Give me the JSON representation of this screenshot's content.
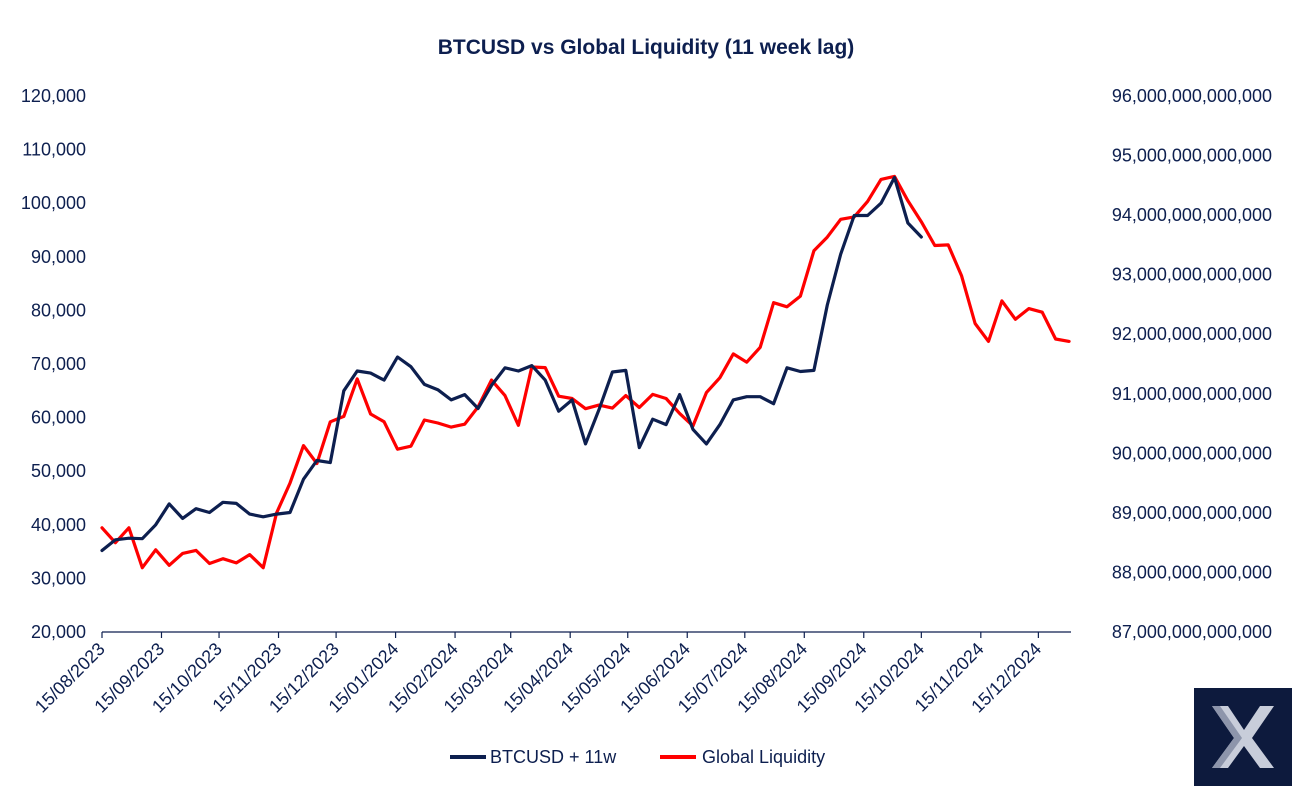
{
  "chart_data": {
    "type": "line",
    "title": "BTCUSD vs Global Liquidity (11 week lag)",
    "xlabel": "",
    "y_left_label": "",
    "y_right_label": "",
    "y_left_lim": [
      20000,
      120000
    ],
    "y_right_lim": [
      87000000000000,
      96000000000000
    ],
    "y_left_ticks": [
      "20,000",
      "30,000",
      "40,000",
      "50,000",
      "60,000",
      "70,000",
      "80,000",
      "90,000",
      "100,000",
      "110,000",
      "120,000"
    ],
    "y_right_ticks": [
      "87,000,000,000,000",
      "88,000,000,000,000",
      "89,000,000,000,000",
      "90,000,000,000,000",
      "91,000,000,000,000",
      "92,000,000,000,000",
      "93,000,000,000,000",
      "94,000,000,000,000",
      "95,000,000,000,000",
      "96,000,000,000,000"
    ],
    "x_tick_labels": [
      "15/08/2023",
      "15/09/2023",
      "15/10/2023",
      "15/11/2023",
      "15/12/2023",
      "15/01/2024",
      "15/02/2024",
      "15/03/2024",
      "15/04/2024",
      "15/05/2024",
      "15/06/2024",
      "15/07/2024",
      "15/08/2024",
      "15/09/2024",
      "15/10/2024",
      "15/11/2024",
      "15/12/2024"
    ],
    "x_start": "2023-08-15",
    "x_end": "2025-01-01",
    "grid": false,
    "legend_position": "bottom-center",
    "series": [
      {
        "name": "BTCUSD + 11w",
        "color": "#0d1f4f",
        "axis": "left",
        "points": [
          [
            "2023-08-15",
            35200
          ],
          [
            "2023-08-22",
            37200
          ],
          [
            "2023-08-29",
            37500
          ],
          [
            "2023-09-05",
            37400
          ],
          [
            "2023-09-12",
            40000
          ],
          [
            "2023-09-19",
            43900
          ],
          [
            "2023-09-26",
            41200
          ],
          [
            "2023-10-03",
            43000
          ],
          [
            "2023-10-10",
            42300
          ],
          [
            "2023-10-17",
            44200
          ],
          [
            "2023-10-24",
            44000
          ],
          [
            "2023-10-31",
            42000
          ],
          [
            "2023-11-07",
            41500
          ],
          [
            "2023-11-14",
            42000
          ],
          [
            "2023-11-21",
            42300
          ],
          [
            "2023-11-28",
            48500
          ],
          [
            "2023-12-05",
            52000
          ],
          [
            "2023-12-12",
            51600
          ],
          [
            "2023-12-19",
            65000
          ],
          [
            "2023-12-26",
            68700
          ],
          [
            "2024-01-02",
            68300
          ],
          [
            "2024-01-09",
            67000
          ],
          [
            "2024-01-16",
            71300
          ],
          [
            "2024-01-23",
            69500
          ],
          [
            "2024-01-30",
            66200
          ],
          [
            "2024-02-06",
            65200
          ],
          [
            "2024-02-13",
            63300
          ],
          [
            "2024-02-20",
            64300
          ],
          [
            "2024-02-27",
            61700
          ],
          [
            "2024-03-05",
            66000
          ],
          [
            "2024-03-12",
            69300
          ],
          [
            "2024-03-19",
            68700
          ],
          [
            "2024-03-26",
            69700
          ],
          [
            "2024-04-02",
            67000
          ],
          [
            "2024-04-09",
            61200
          ],
          [
            "2024-04-16",
            63300
          ],
          [
            "2024-04-23",
            55100
          ],
          [
            "2024-04-30",
            61500
          ],
          [
            "2024-05-07",
            68500
          ],
          [
            "2024-05-14",
            68800
          ],
          [
            "2024-05-21",
            54400
          ],
          [
            "2024-05-28",
            59700
          ],
          [
            "2024-06-04",
            58700
          ],
          [
            "2024-06-11",
            64300
          ],
          [
            "2024-06-18",
            57800
          ],
          [
            "2024-06-25",
            55100
          ],
          [
            "2024-07-02",
            58700
          ],
          [
            "2024-07-09",
            63300
          ],
          [
            "2024-07-16",
            63900
          ],
          [
            "2024-07-23",
            63900
          ],
          [
            "2024-07-30",
            62600
          ],
          [
            "2024-08-06",
            69300
          ],
          [
            "2024-08-13",
            68600
          ],
          [
            "2024-08-20",
            68800
          ],
          [
            "2024-08-27",
            81000
          ],
          [
            "2024-09-03",
            90500
          ],
          [
            "2024-09-10",
            97700
          ],
          [
            "2024-09-17",
            97700
          ],
          [
            "2024-09-24",
            100000
          ],
          [
            "2024-10-01",
            104800
          ],
          [
            "2024-10-08",
            96300
          ],
          [
            "2024-10-15",
            93700
          ]
        ]
      },
      {
        "name": "Global Liquidity",
        "color": "#ff0000",
        "axis": "right",
        "points": [
          [
            "2023-08-15",
            88750000000000
          ],
          [
            "2023-08-22",
            88500000000000
          ],
          [
            "2023-08-29",
            88750000000000
          ],
          [
            "2023-09-05",
            88080000000000
          ],
          [
            "2023-09-12",
            88380000000000
          ],
          [
            "2023-09-19",
            88120000000000
          ],
          [
            "2023-09-26",
            88320000000000
          ],
          [
            "2023-10-03",
            88370000000000
          ],
          [
            "2023-10-10",
            88150000000000
          ],
          [
            "2023-10-17",
            88230000000000
          ],
          [
            "2023-10-24",
            88160000000000
          ],
          [
            "2023-10-31",
            88300000000000
          ],
          [
            "2023-11-07",
            88080000000000
          ],
          [
            "2023-11-14",
            89000000000000
          ],
          [
            "2023-11-21",
            89500000000000
          ],
          [
            "2023-11-28",
            90130000000000
          ],
          [
            "2023-12-05",
            89830000000000
          ],
          [
            "2023-12-12",
            90530000000000
          ],
          [
            "2023-12-19",
            90620000000000
          ],
          [
            "2023-12-26",
            91250000000000
          ],
          [
            "2024-01-02",
            90660000000000
          ],
          [
            "2024-01-09",
            90530000000000
          ],
          [
            "2024-01-16",
            90070000000000
          ],
          [
            "2024-01-23",
            90120000000000
          ],
          [
            "2024-01-30",
            90560000000000
          ],
          [
            "2024-02-06",
            90510000000000
          ],
          [
            "2024-02-13",
            90440000000000
          ],
          [
            "2024-02-20",
            90490000000000
          ],
          [
            "2024-02-27",
            90780000000000
          ],
          [
            "2024-03-05",
            91230000000000
          ],
          [
            "2024-03-12",
            90970000000000
          ],
          [
            "2024-03-19",
            90470000000000
          ],
          [
            "2024-03-26",
            91450000000000
          ],
          [
            "2024-04-02",
            91440000000000
          ],
          [
            "2024-04-09",
            90960000000000
          ],
          [
            "2024-04-16",
            90920000000000
          ],
          [
            "2024-04-23",
            90750000000000
          ],
          [
            "2024-04-30",
            90810000000000
          ],
          [
            "2024-05-07",
            90760000000000
          ],
          [
            "2024-05-14",
            90970000000000
          ],
          [
            "2024-05-21",
            90770000000000
          ],
          [
            "2024-05-28",
            90990000000000
          ],
          [
            "2024-06-04",
            90920000000000
          ],
          [
            "2024-06-11",
            90670000000000
          ],
          [
            "2024-06-18",
            90460000000000
          ],
          [
            "2024-06-25",
            91020000000000
          ],
          [
            "2024-07-02",
            91270000000000
          ],
          [
            "2024-07-09",
            91670000000000
          ],
          [
            "2024-07-16",
            91530000000000
          ],
          [
            "2024-07-23",
            91780000000000
          ],
          [
            "2024-07-30",
            92530000000000
          ],
          [
            "2024-08-06",
            92460000000000
          ],
          [
            "2024-08-13",
            92640000000000
          ],
          [
            "2024-08-20",
            93400000000000
          ],
          [
            "2024-08-27",
            93630000000000
          ],
          [
            "2024-09-03",
            93930000000000
          ],
          [
            "2024-09-10",
            93970000000000
          ],
          [
            "2024-09-17",
            94230000000000
          ],
          [
            "2024-09-24",
            94600000000000
          ],
          [
            "2024-10-01",
            94650000000000
          ],
          [
            "2024-10-08",
            94240000000000
          ],
          [
            "2024-10-15",
            93890000000000
          ],
          [
            "2024-10-22",
            93490000000000
          ],
          [
            "2024-10-29",
            93500000000000
          ],
          [
            "2024-11-05",
            92980000000000
          ],
          [
            "2024-11-12",
            92180000000000
          ],
          [
            "2024-11-19",
            91880000000000
          ],
          [
            "2024-11-26",
            92560000000000
          ],
          [
            "2024-12-03",
            92250000000000
          ],
          [
            "2024-12-10",
            92430000000000
          ],
          [
            "2024-12-17",
            92370000000000
          ],
          [
            "2024-12-24",
            91920000000000
          ],
          [
            "2024-12-31",
            91880000000000
          ]
        ]
      }
    ]
  },
  "logo": {
    "mark": "X",
    "bg_color": "#0d1a3d"
  }
}
